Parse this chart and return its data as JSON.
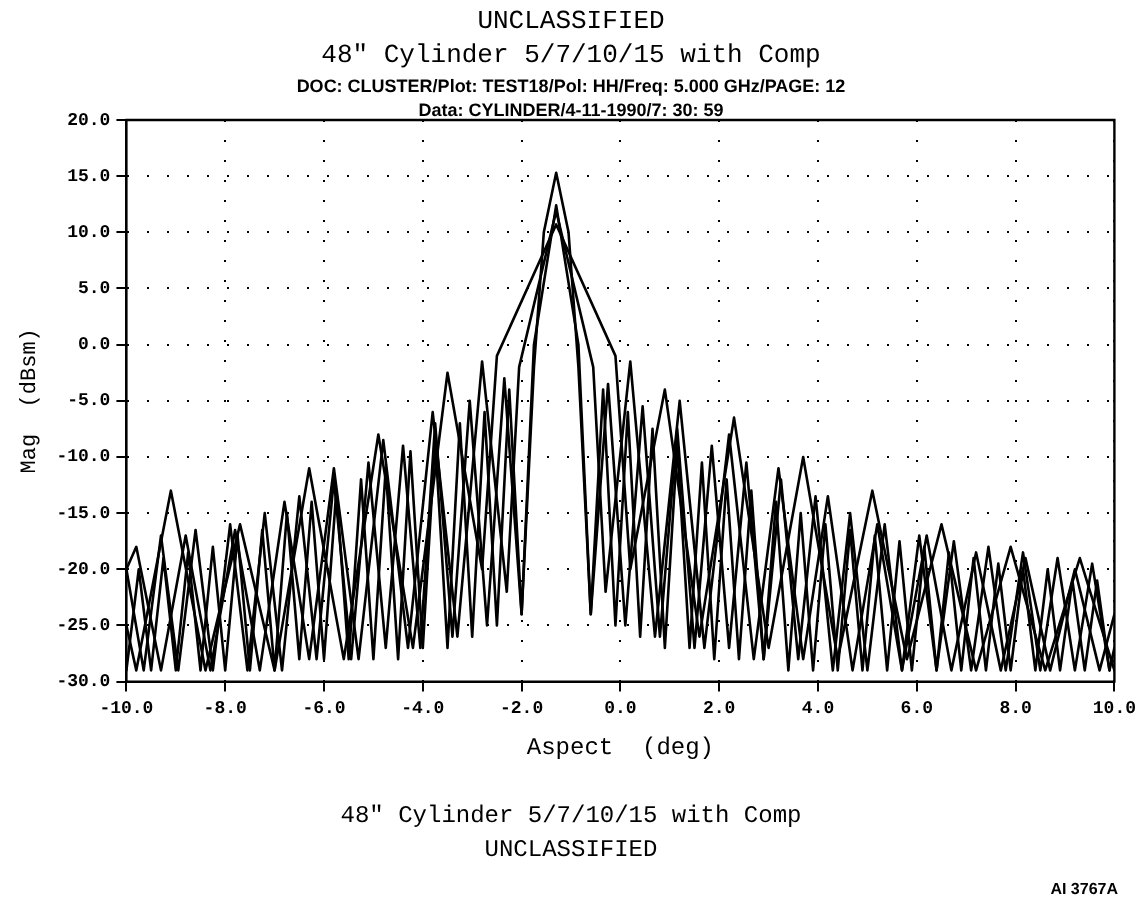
{
  "chart_data": {
    "type": "line",
    "title": "48\" Cylinder 5/7/10/15 with Comp",
    "subtitle": "DOC: CLUSTER/Plot: TEST18/Pol: HH/Freq: 5.000 GHz/PAGE: 12\nData: CYLINDER/4-11-1990/7: 30: 59",
    "xlabel": "Aspect  (deg)",
    "ylabel": "Mag  (dBsm)",
    "annotations": [
      "UNCLASSIFIED",
      "48\" Cylinder 5/7/10/15 with Comp",
      "UNCLASSIFIED",
      "AI 3767A"
    ],
    "xlim": [
      -10,
      10
    ],
    "xticks": [
      {
        "value": -10,
        "label": "-10.0"
      },
      {
        "value": -8,
        "label": "-8.0"
      },
      {
        "value": -6,
        "label": "-6.0"
      },
      {
        "value": -4,
        "label": "-4.0"
      },
      {
        "value": -2,
        "label": "-2.0"
      },
      {
        "value": 0,
        "label": "0.0"
      },
      {
        "value": 2,
        "label": "2.0"
      },
      {
        "value": 4,
        "label": "4.0"
      },
      {
        "value": 6,
        "label": "6.0"
      },
      {
        "value": 8,
        "label": "8.0"
      },
      {
        "value": 10,
        "label": "10.0"
      }
    ],
    "ylim": [
      -30,
      20
    ],
    "yticks": [
      {
        "value": -30,
        "label": "-30.0"
      },
      {
        "value": -25,
        "label": "-25.0"
      },
      {
        "value": -20,
        "label": "-20.0"
      },
      {
        "value": -15,
        "label": "-15.0"
      },
      {
        "value": -10,
        "label": "-10.0"
      },
      {
        "value": -5,
        "label": "-5.0"
      },
      {
        "value": 0,
        "label": "0.0"
      },
      {
        "value": 5,
        "label": "5.0"
      },
      {
        "value": 10,
        "label": "10.0"
      },
      {
        "value": 15,
        "label": "15.0"
      },
      {
        "value": 20,
        "label": "20.0"
      }
    ],
    "grid": true,
    "legend": false,
    "marker": "none",
    "series": [
      {
        "color": "#000000",
        "x": [
          -10,
          -9.75,
          -9.5,
          -9.25,
          -9,
          -8.75,
          -8.5,
          -8.25,
          -8,
          -7.75,
          -7.5,
          -7.25,
          -7,
          -6.75,
          -6.5,
          -6.25,
          -6,
          -5.75,
          -5.5,
          -5.25,
          -5,
          -4.75,
          -4.5,
          -4.25,
          -4,
          -3.75,
          -3.5,
          -3.25,
          -3,
          -2.75,
          -2.5,
          -2.25,
          -2,
          -1.75,
          -1.55,
          -1.3,
          -1.05,
          -0.85,
          -0.6,
          -0.35,
          -0.1,
          0.15,
          0.4,
          0.65,
          0.9,
          1.15,
          1.4,
          1.65,
          1.9,
          2.15,
          2.4,
          2.65,
          2.9,
          3.15,
          3.4,
          3.65,
          3.9,
          4.15,
          4.4,
          4.65,
          4.9,
          5.15,
          5.4,
          5.65,
          5.9,
          6.15,
          6.4,
          6.65,
          6.9,
          7.15,
          7.4,
          7.65,
          7.9,
          8.15,
          8.4,
          8.65,
          8.9,
          9.15,
          9.4,
          9.65,
          9.9
        ],
        "values": [
          -29,
          -20,
          -29,
          -19,
          -29,
          -18.5,
          -29,
          -18,
          -29,
          -17,
          -29,
          -16.5,
          -29,
          -15,
          -28,
          -14,
          -28,
          -13,
          -28,
          -12,
          -28,
          -11,
          -28,
          -9.5,
          -27,
          -8.5,
          -27,
          -7,
          -26,
          -6,
          -25,
          -4,
          -24,
          -2,
          10,
          15.3,
          10,
          -2,
          -24,
          -4,
          -25,
          -6,
          -26,
          -7.5,
          -27,
          -9,
          -27,
          -10.5,
          -28,
          -12,
          -28,
          -13,
          -28,
          -14,
          -29,
          -15,
          -29,
          -16,
          -29,
          -16.5,
          -29,
          -17,
          -29,
          -17.5,
          -29,
          -18,
          -29,
          -18.5,
          -29,
          -19,
          -29,
          -19.5,
          -29,
          -20,
          -29,
          -20,
          -29,
          -21,
          -29,
          -21,
          -29
        ]
      },
      {
        "color": "#000000",
        "x": [
          -10,
          -9.65,
          -9.3,
          -8.95,
          -8.6,
          -8.25,
          -7.9,
          -7.55,
          -7.2,
          -6.85,
          -6.5,
          -6.15,
          -5.8,
          -5.45,
          -5.1,
          -4.75,
          -4.4,
          -4.05,
          -3.75,
          -3.4,
          -3.05,
          -2.7,
          -2.35,
          -2,
          -1.75,
          -1.3,
          -0.85,
          -0.6,
          -0.25,
          0.1,
          0.45,
          0.8,
          1.15,
          1.5,
          1.85,
          2.2,
          2.55,
          2.9,
          3.25,
          3.6,
          3.95,
          4.3,
          4.65,
          5,
          5.35,
          5.7,
          6.05,
          6.4,
          6.75,
          7.1,
          7.45,
          7.8,
          8.15,
          8.5,
          8.85,
          9.2,
          9.55,
          9.9,
          10
        ],
        "values": [
          -20,
          -29,
          -17,
          -29,
          -16.5,
          -29,
          -16,
          -29,
          -15,
          -29,
          -13.5,
          -28,
          -12,
          -28,
          -10.5,
          -27,
          -9,
          -27,
          -7,
          -26,
          -5,
          -25,
          -3,
          -24,
          0,
          12.4,
          0,
          -24,
          -3.5,
          -25,
          -5.5,
          -26,
          -7.5,
          -27,
          -9,
          -27,
          -10.5,
          -28,
          -12,
          -28,
          -13.5,
          -29,
          -15,
          -29,
          -16,
          -29,
          -17,
          -29,
          -17.5,
          -29,
          -18,
          -29,
          -18.5,
          -29,
          -19,
          -29,
          -19.5,
          -29,
          -27
        ]
      },
      {
        "color": "#000000",
        "x": [
          -10,
          -9.8,
          -9.3,
          -8.8,
          -8.3,
          -7.8,
          -7.3,
          -6.8,
          -6.3,
          -5.8,
          -5.3,
          -4.8,
          -4.3,
          -3.8,
          -3.3,
          -2.8,
          -2.3,
          -2.05,
          -1.3,
          -0.55,
          -0.3,
          0.2,
          0.7,
          1.2,
          1.7,
          2.2,
          2.7,
          3.2,
          3.7,
          4.2,
          4.7,
          5.2,
          5.7,
          6.2,
          6.7,
          7.2,
          7.7,
          8.2,
          8.7,
          9.2,
          9.7,
          10
        ],
        "values": [
          -20,
          -18,
          -29,
          -17,
          -29,
          -16.5,
          -29,
          -14,
          -28,
          -11,
          -28,
          -8.5,
          -27,
          -6,
          -26,
          -1.5,
          -22,
          -2,
          11.9,
          -2,
          -22,
          -1.5,
          -26,
          -5,
          -27,
          -8,
          -28,
          -11,
          -28,
          -13.5,
          -29,
          -16,
          -29,
          -17,
          -29,
          -18.5,
          -29,
          -19,
          -29,
          -20,
          -29,
          -24
        ]
      },
      {
        "color": "#000000",
        "x": [
          -10,
          -9.8,
          -9.1,
          -8.4,
          -7.7,
          -7,
          -6.3,
          -5.6,
          -4.9,
          -4.2,
          -3.5,
          -2.8,
          -2.5,
          -1.3,
          -0.1,
          0.2,
          0.9,
          1.6,
          2.3,
          3,
          3.7,
          4.4,
          5.1,
          5.8,
          6.5,
          7.2,
          7.9,
          8.6,
          9.3,
          10
        ],
        "values": [
          -25,
          -29,
          -13,
          -29,
          -16,
          -29,
          -11,
          -28,
          -8,
          -27,
          -2.5,
          -20,
          -1,
          10.7,
          -1,
          -20,
          -4,
          -26,
          -6.5,
          -27,
          -10,
          -28,
          -13,
          -28,
          -16,
          -29,
          -18,
          -29,
          -19,
          -29
        ]
      }
    ]
  }
}
